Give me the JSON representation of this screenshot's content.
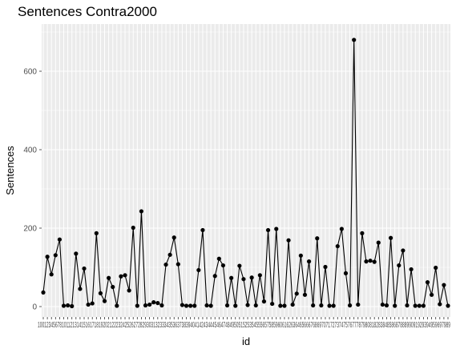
{
  "chart_data": {
    "type": "line",
    "title": "Sentences Contra2000",
    "xlabel": "id",
    "ylabel": "Sentences",
    "ylim": [
      0,
      680
    ],
    "yticks": [
      0,
      200,
      400,
      600
    ],
    "grid": true,
    "legend": "none",
    "colors": {
      "panel": "#ebebeb",
      "grid": "#ffffff",
      "line": "#000000",
      "point": "#000000",
      "text": "#4d4d4d",
      "title": "#000000"
    },
    "x_tick_text": "100123456781011213141516171819202122232425262728293031323334353637383940414243444546474849505152535455565758596061626364656667686970717273747576777879808182838485868788899091929394959697989",
    "values": [
      36,
      127,
      82,
      131,
      171,
      2,
      3,
      1,
      135,
      45,
      97,
      5,
      8,
      187,
      34,
      14,
      73,
      50,
      2,
      77,
      80,
      41,
      201,
      2,
      243,
      3,
      5,
      11,
      9,
      3,
      107,
      132,
      176,
      108,
      4,
      2,
      2,
      2,
      93,
      195,
      3,
      2,
      78,
      122,
      105,
      3,
      73,
      2,
      104,
      70,
      4,
      74,
      3,
      80,
      13,
      195,
      7,
      198,
      2,
      2,
      169,
      5,
      33,
      130,
      30,
      115,
      3,
      174,
      3,
      101,
      2,
      2,
      154,
      198,
      85,
      3,
      680,
      5,
      187,
      115,
      117,
      114,
      163,
      5,
      3,
      175,
      2,
      105,
      143,
      3,
      95,
      2,
      2,
      2,
      62,
      30,
      99,
      6,
      55,
      2
    ]
  }
}
